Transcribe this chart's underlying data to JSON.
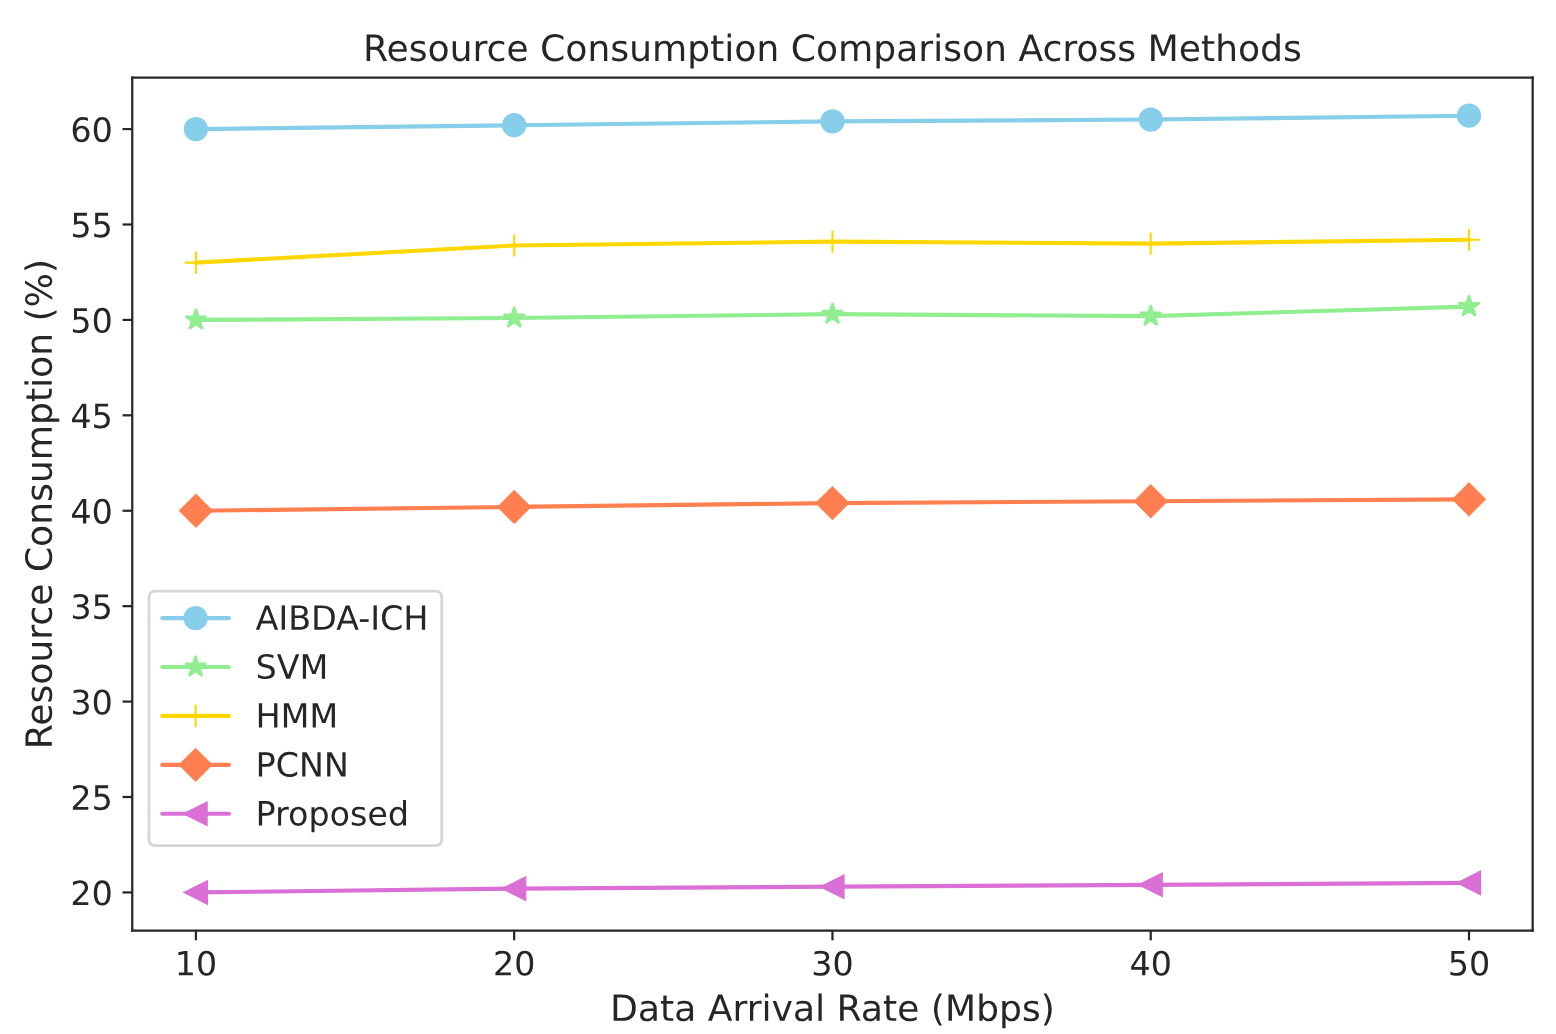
{
  "chart_data": {
    "type": "line",
    "title": "Resource Consumption Comparison Across Methods",
    "xlabel": "Data Arrival Rate (Mbps)",
    "ylabel": "Resource Consumption (%)",
    "x": [
      10,
      20,
      30,
      40,
      50
    ],
    "series": [
      {
        "name": "AIBDA-ICH",
        "color": "#87ceeb",
        "marker": "circle",
        "values": [
          60,
          60.2,
          60.4,
          60.5,
          60.7
        ]
      },
      {
        "name": "SVM",
        "color": "#90ee90",
        "marker": "star",
        "values": [
          50,
          50.1,
          50.3,
          50.2,
          50.7
        ]
      },
      {
        "name": "HMM",
        "color": "#ffd700",
        "marker": "cross",
        "values": [
          53,
          53.9,
          54.1,
          54.0,
          54.2
        ]
      },
      {
        "name": "PCNN",
        "color": "#ff7f50",
        "marker": "diamond",
        "values": [
          40,
          40.2,
          40.4,
          40.5,
          40.6
        ]
      },
      {
        "name": "Proposed",
        "color": "#da70d6",
        "marker": "triangle",
        "values": [
          20,
          20.2,
          20.3,
          20.4,
          20.5
        ]
      }
    ],
    "xlim": [
      8,
      52
    ],
    "ylim": [
      18,
      62.7
    ],
    "xticks": [
      10,
      20,
      30,
      40,
      50
    ],
    "yticks": [
      20,
      25,
      30,
      35,
      40,
      45,
      50,
      55,
      60
    ],
    "grid": false,
    "legend": "bottom left",
    "line_style": "solid"
  }
}
